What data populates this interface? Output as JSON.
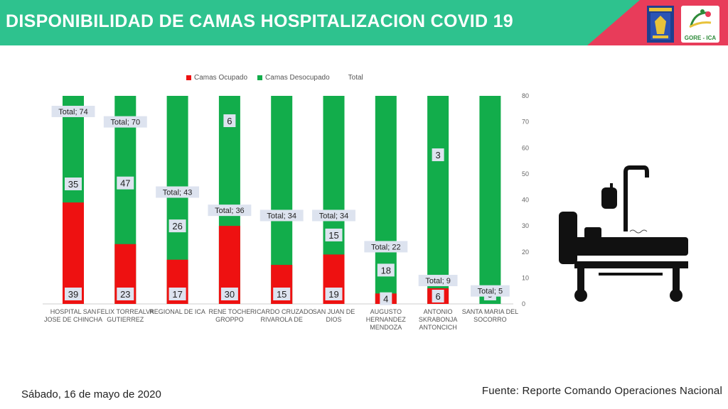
{
  "header": {
    "title": "DISPONIBILIDAD DE CAMAS HOSPITALIZACION COVID 19",
    "logo_text": "GORE - ICA",
    "bg_color": "#2ec28e",
    "accent_color": "#e83c5a"
  },
  "footer": {
    "date": "Sábado, 16 de mayo de 2020",
    "source": "Fuente: Reporte Comando Operaciones Nacional"
  },
  "chart_data": {
    "type": "bar",
    "stacked": true,
    "categories": [
      "HOSPITAL SAN JOSE DE CHINCHA",
      "FELIX TORREALVA GUTIERREZ",
      "REGIONAL DE ICA",
      "RENE TOCHE GROPPO",
      "RICARDO CRUZADO RIVAROLA DE",
      "SAN JUAN DE DIOS",
      "AUGUSTO HERNANDEZ MENDOZA",
      "ANTONIO SKRABONJA ANTONCICH",
      "SANTA MARIA DEL SOCORRO"
    ],
    "series": [
      {
        "name": "Camas Ocupado",
        "color": "#ee1111",
        "values": [
          39,
          23,
          17,
          30,
          15,
          19,
          4,
          6,
          0
        ]
      },
      {
        "name": "Camas Desocupado",
        "color": "#12ad4b",
        "values": [
          35,
          47,
          26,
          6,
          19,
          15,
          18,
          3,
          5
        ]
      }
    ],
    "ocupado_labels": [
      "39",
      "23",
      "17",
      "30",
      "15",
      "19",
      "4",
      "6",
      ""
    ],
    "desocupado_labels": [
      "35",
      "47",
      "26",
      "6",
      "",
      "15",
      "18",
      "3",
      "5"
    ],
    "total_legend": "Total",
    "totals": [
      "Total; 74",
      "Total; 70",
      "Total; 43",
      "Total; 36",
      "Total; 34",
      "Total; 34",
      "Total; 22",
      "Total; 9",
      "Total; 5"
    ],
    "total_values": [
      74,
      70,
      43,
      36,
      34,
      34,
      22,
      9,
      5
    ],
    "ylim": [
      0,
      80
    ],
    "yticks": [
      "0",
      "10",
      "20",
      "30",
      "40",
      "50",
      "60",
      "70",
      "80"
    ],
    "ytick_values": [
      0,
      10,
      20,
      30,
      40,
      50,
      60,
      70,
      80
    ],
    "axis_position": "right",
    "bar_background": "green-to-top",
    "legend": "top",
    "icon": "hospital-bed-icon"
  }
}
